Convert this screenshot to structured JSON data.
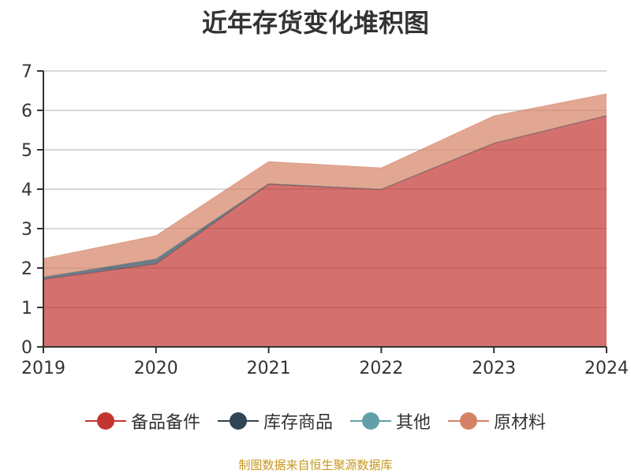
{
  "chart_data": {
    "type": "area",
    "stacked": true,
    "title": "近年存货变化堆积图",
    "categories": [
      "2019",
      "2020",
      "2021",
      "2022",
      "2023",
      "2024"
    ],
    "ylim": [
      0,
      7
    ],
    "yticks": [
      "0",
      "1",
      "2",
      "3",
      "4",
      "5",
      "6",
      "7"
    ],
    "grid": true,
    "legend_position": "bottom",
    "series": [
      {
        "name": "备品备件",
        "color": "#c23531",
        "values": [
          1.71,
          2.1,
          4.12,
          3.99,
          5.16,
          5.86
        ]
      },
      {
        "name": "库存商品",
        "color": "#2f4554",
        "values": [
          0.06,
          0.13,
          0.02,
          0.01,
          0.01,
          0.01
        ]
      },
      {
        "name": "其他",
        "color": "#61a0a8",
        "values": [
          0,
          0,
          0,
          0,
          0,
          0
        ]
      },
      {
        "name": "原材料",
        "color": "#d48265",
        "values": [
          0.47,
          0.59,
          0.56,
          0.54,
          0.69,
          0.55
        ]
      }
    ]
  },
  "source": "制图数据来自恒生聚源数据库"
}
